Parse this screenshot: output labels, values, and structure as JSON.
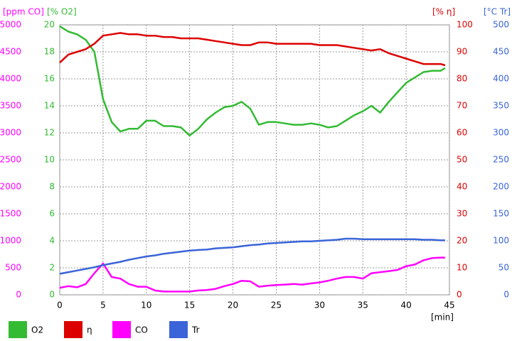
{
  "chart_data": {
    "type": "line",
    "x": [
      0,
      1,
      2,
      3,
      4,
      5,
      6,
      7,
      8,
      9,
      10,
      11,
      12,
      13,
      14,
      15,
      16,
      17,
      18,
      19,
      20,
      21,
      22,
      23,
      24,
      25,
      26,
      27,
      28,
      29,
      30,
      31,
      32,
      33,
      34,
      35,
      36,
      37,
      38,
      39,
      40,
      41,
      42,
      43,
      44,
      44.5
    ],
    "xlim": [
      0,
      45
    ],
    "xticks": [
      0,
      5,
      10,
      15,
      20,
      25,
      30,
      35,
      40,
      45
    ],
    "xlabel": "[min]",
    "grid": true,
    "y_axes": [
      {
        "label": "[ppm CO]",
        "color": "#ff00ff",
        "lim": [
          0,
          5000
        ],
        "ticks": [
          0,
          500,
          1000,
          1500,
          2000,
          2500,
          3000,
          3500,
          4000,
          4500,
          5000
        ],
        "side": "left"
      },
      {
        "label": "[% O2]",
        "color": "#33bb33",
        "lim": [
          0,
          20
        ],
        "ticks": [
          0,
          2,
          4,
          6,
          8,
          10,
          12,
          14,
          16,
          18,
          20
        ],
        "side": "left"
      },
      {
        "label": "[% η]",
        "color": "#dd0000",
        "lim": [
          0,
          100
        ],
        "ticks": [
          0,
          10,
          20,
          30,
          40,
          50,
          60,
          70,
          80,
          90,
          100
        ],
        "side": "right"
      },
      {
        "label": "[°C Tr]",
        "color": "#3a64d8",
        "lim": [
          0,
          500
        ],
        "ticks": [
          0,
          50,
          100,
          150,
          200,
          250,
          300,
          350,
          400,
          450,
          500
        ],
        "side": "right"
      }
    ],
    "series": [
      {
        "name": "O2",
        "color": "#33bb33",
        "axis": 1,
        "values": [
          19.9,
          19.5,
          19.3,
          18.9,
          18.0,
          14.5,
          12.8,
          12.1,
          12.3,
          12.3,
          12.9,
          12.9,
          12.5,
          12.5,
          12.4,
          11.8,
          12.3,
          13.0,
          13.5,
          13.9,
          14.0,
          14.3,
          13.8,
          12.6,
          12.8,
          12.8,
          12.7,
          12.6,
          12.6,
          12.7,
          12.6,
          12.4,
          12.5,
          12.9,
          13.3,
          13.6,
          14.0,
          13.5,
          14.3,
          15.0,
          15.7,
          16.1,
          16.5,
          16.6,
          16.6,
          16.8
        ]
      },
      {
        "name": "η",
        "color": "#dd0000",
        "axis": 2,
        "values": [
          86,
          89,
          90,
          91,
          93,
          96,
          96.5,
          97,
          96.5,
          96.5,
          96,
          96,
          95.5,
          95.5,
          95,
          95,
          95,
          94.5,
          94,
          93.5,
          93,
          92.5,
          92.5,
          93.5,
          93.5,
          93,
          93,
          93,
          93,
          93,
          92.5,
          92.5,
          92.5,
          92,
          91.5,
          91,
          90.5,
          91,
          89.5,
          88.5,
          87.5,
          86.5,
          85.5,
          85.5,
          85.5,
          85
        ]
      },
      {
        "name": "CO",
        "color": "#ff00ff",
        "axis": 0,
        "values": [
          130,
          160,
          140,
          200,
          400,
          580,
          330,
          300,
          200,
          150,
          150,
          80,
          60,
          60,
          60,
          60,
          80,
          90,
          110,
          160,
          200,
          260,
          250,
          150,
          170,
          180,
          190,
          200,
          190,
          210,
          230,
          260,
          300,
          330,
          330,
          300,
          400,
          420,
          440,
          460,
          530,
          560,
          640,
          680,
          690,
          690
        ]
      },
      {
        "name": "Tr",
        "color": "#3a64d8",
        "axis": 3,
        "values": [
          39,
          42,
          45,
          48,
          51,
          55,
          58,
          61,
          65,
          68,
          71,
          73,
          76,
          78,
          80,
          82,
          83,
          84,
          86,
          87,
          88,
          90,
          92,
          93,
          95,
          96,
          97,
          98,
          99,
          99,
          100,
          101,
          102,
          104,
          104,
          103,
          103,
          103,
          103,
          103,
          103,
          103,
          102,
          102,
          101,
          101
        ]
      }
    ]
  }
}
